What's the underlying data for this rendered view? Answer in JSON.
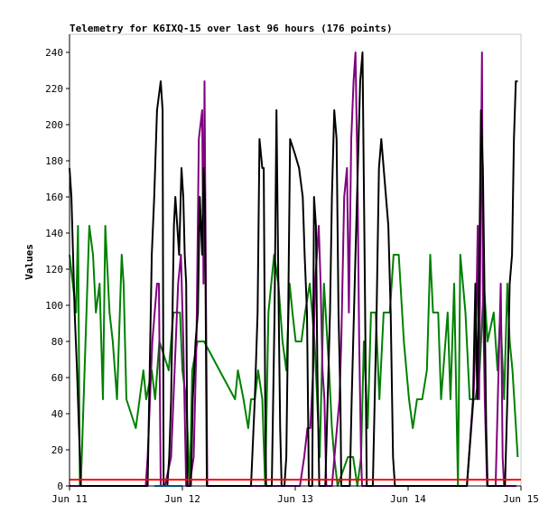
{
  "chart_data": {
    "type": "line",
    "title": "Telemetry for K6IXQ-15 over last 96 hours (176 points)",
    "xlabel": "",
    "ylabel": "Values",
    "xlim": [
      0,
      96
    ],
    "ylim": [
      0,
      250
    ],
    "grid": false,
    "x_ticks": [
      {
        "value": 0,
        "label": "Jun 11"
      },
      {
        "value": 24,
        "label": "Jun 12"
      },
      {
        "value": 48,
        "label": "Jun 13"
      },
      {
        "value": 72,
        "label": "Jun 14"
      },
      {
        "value": 96,
        "label": "Jun 15"
      }
    ],
    "y_ticks": [
      {
        "value": 0,
        "label": "0"
      },
      {
        "value": 20,
        "label": "20"
      },
      {
        "value": 40,
        "label": "40"
      },
      {
        "value": 60,
        "label": "60"
      },
      {
        "value": 80,
        "label": "80"
      },
      {
        "value": 100,
        "label": "100"
      },
      {
        "value": 120,
        "label": "120"
      },
      {
        "value": 140,
        "label": "140"
      },
      {
        "value": 160,
        "label": "160"
      },
      {
        "value": 180,
        "label": "180"
      },
      {
        "value": 200,
        "label": "200"
      },
      {
        "value": 220,
        "label": "220"
      },
      {
        "value": 240,
        "label": "240"
      }
    ],
    "series": [
      {
        "color": "#008000",
        "points": [
          [
            0.0,
            128
          ],
          [
            1.4,
            96
          ],
          [
            1.8,
            144
          ],
          [
            2.2,
            0
          ],
          [
            2.4,
            0
          ],
          [
            4.2,
            144
          ],
          [
            5.0,
            128
          ],
          [
            5.6,
            96
          ],
          [
            6.4,
            112
          ],
          [
            7.1,
            48
          ],
          [
            7.6,
            144
          ],
          [
            8.5,
            96
          ],
          [
            9.2,
            80
          ],
          [
            10.1,
            48
          ],
          [
            11.1,
            128
          ],
          [
            11.5,
            112
          ],
          [
            12.1,
            48
          ],
          [
            14.1,
            32
          ],
          [
            14.9,
            48
          ],
          [
            15.7,
            64
          ],
          [
            16.3,
            48
          ],
          [
            17.5,
            64
          ],
          [
            18.2,
            48
          ],
          [
            19.1,
            80
          ],
          [
            21.1,
            64
          ],
          [
            21.6,
            80
          ],
          [
            22.1,
            96
          ],
          [
            23.5,
            96
          ],
          [
            24.0,
            64
          ],
          [
            24.8,
            48
          ],
          [
            25.6,
            0
          ],
          [
            26.1,
            64
          ],
          [
            27.2,
            80
          ],
          [
            28.2,
            80
          ],
          [
            28.6,
            80
          ],
          [
            31.9,
            64
          ],
          [
            35.2,
            48
          ],
          [
            35.8,
            64
          ],
          [
            37.0,
            48
          ],
          [
            38.0,
            32
          ],
          [
            38.6,
            48
          ],
          [
            39.4,
            48
          ],
          [
            40.1,
            64
          ],
          [
            41.0,
            48
          ],
          [
            41.6,
            0
          ],
          [
            42.3,
            96
          ],
          [
            43.5,
            128
          ],
          [
            44.4,
            112
          ],
          [
            45.3,
            80
          ],
          [
            46.1,
            64
          ],
          [
            46.8,
            112
          ],
          [
            47.4,
            96
          ],
          [
            48.1,
            80
          ],
          [
            49.3,
            80
          ],
          [
            50.1,
            96
          ],
          [
            51.1,
            112
          ],
          [
            52.1,
            80
          ],
          [
            53.2,
            16
          ],
          [
            54.1,
            112
          ],
          [
            55.2,
            64
          ],
          [
            55.8,
            32
          ],
          [
            56.3,
            16
          ],
          [
            57.0,
            0
          ],
          [
            59.2,
            16
          ],
          [
            60.3,
            16
          ],
          [
            61.2,
            0
          ],
          [
            62.0,
            16
          ],
          [
            62.6,
            80
          ],
          [
            63.4,
            32
          ],
          [
            64.1,
            96
          ],
          [
            65.1,
            96
          ],
          [
            65.9,
            48
          ],
          [
            66.8,
            96
          ],
          [
            68.1,
            96
          ],
          [
            68.9,
            128
          ],
          [
            70.0,
            128
          ],
          [
            71.1,
            80
          ],
          [
            72.2,
            48
          ],
          [
            73.0,
            32
          ],
          [
            73.9,
            48
          ],
          [
            75.0,
            48
          ],
          [
            76.0,
            64
          ],
          [
            76.7,
            128
          ],
          [
            77.3,
            96
          ],
          [
            78.4,
            96
          ],
          [
            79.0,
            48
          ],
          [
            80.4,
            96
          ],
          [
            81.0,
            48
          ],
          [
            81.8,
            112
          ],
          [
            82.6,
            0
          ],
          [
            83.1,
            128
          ],
          [
            84.2,
            96
          ],
          [
            85.1,
            48
          ],
          [
            86.3,
            48
          ],
          [
            87.2,
            64
          ],
          [
            88.1,
            112
          ],
          [
            88.9,
            80
          ],
          [
            90.2,
            96
          ],
          [
            91.0,
            64
          ],
          [
            91.6,
            96
          ],
          [
            92.4,
            48
          ],
          [
            93.1,
            112
          ],
          [
            93.6,
            80
          ],
          [
            94.2,
            64
          ],
          [
            95.3,
            16
          ]
        ]
      },
      {
        "color": "#800080",
        "points": [
          [
            0.0,
            0
          ],
          [
            16.2,
            0
          ],
          [
            16.6,
            16
          ],
          [
            17.1,
            48
          ],
          [
            17.6,
            80
          ],
          [
            18.1,
            96
          ],
          [
            18.6,
            112
          ],
          [
            19.0,
            112
          ],
          [
            19.4,
            0
          ],
          [
            19.8,
            0
          ],
          [
            20.3,
            0
          ],
          [
            21.6,
            16
          ],
          [
            22.1,
            48
          ],
          [
            22.6,
            80
          ],
          [
            23.1,
            112
          ],
          [
            23.7,
            128
          ],
          [
            24.2,
            80
          ],
          [
            24.8,
            0
          ],
          [
            25.5,
            0
          ],
          [
            26.4,
            16
          ],
          [
            27.0,
            80
          ],
          [
            27.5,
            192
          ],
          [
            28.2,
            208
          ],
          [
            28.5,
            112
          ],
          [
            28.7,
            224
          ],
          [
            29.0,
            112
          ],
          [
            29.3,
            0
          ],
          [
            30.5,
            0
          ],
          [
            47.3,
            0
          ],
          [
            49.0,
            0
          ],
          [
            49.9,
            16
          ],
          [
            50.6,
            32
          ],
          [
            51.2,
            32
          ],
          [
            51.8,
            64
          ],
          [
            52.2,
            112
          ],
          [
            52.6,
            128
          ],
          [
            53.0,
            144
          ],
          [
            53.4,
            112
          ],
          [
            53.8,
            64
          ],
          [
            54.2,
            48
          ],
          [
            54.6,
            0
          ],
          [
            55.8,
            0
          ],
          [
            57.4,
            48
          ],
          [
            57.8,
            80
          ],
          [
            58.4,
            160
          ],
          [
            59.0,
            176
          ],
          [
            59.4,
            96
          ],
          [
            59.9,
            192
          ],
          [
            60.4,
            224
          ],
          [
            60.8,
            240
          ],
          [
            61.2,
            176
          ],
          [
            61.6,
            80
          ],
          [
            62.0,
            16
          ],
          [
            62.2,
            0
          ],
          [
            63.0,
            0
          ],
          [
            84.5,
            0
          ],
          [
            85.9,
            48
          ],
          [
            86.3,
            80
          ],
          [
            86.5,
            96
          ],
          [
            86.8,
            144
          ],
          [
            87.1,
            48
          ],
          [
            87.7,
            240
          ],
          [
            87.9,
            112
          ],
          [
            88.3,
            48
          ],
          [
            88.8,
            0
          ],
          [
            90.6,
            0
          ],
          [
            91.7,
            112
          ],
          [
            92.1,
            16
          ],
          [
            92.4,
            0
          ],
          [
            95.0,
            0
          ]
        ]
      },
      {
        "color": "#000000",
        "points": [
          [
            0.0,
            176
          ],
          [
            0.4,
            160
          ],
          [
            1.1,
            96
          ],
          [
            1.6,
            64
          ],
          [
            2.2,
            16
          ],
          [
            2.4,
            0
          ],
          [
            3.0,
            0
          ],
          [
            16.6,
            0
          ],
          [
            17.5,
            128
          ],
          [
            18.0,
            160
          ],
          [
            18.6,
            208
          ],
          [
            19.4,
            224
          ],
          [
            19.8,
            208
          ],
          [
            20.0,
            0
          ],
          [
            20.8,
            0
          ],
          [
            21.2,
            16
          ],
          [
            21.6,
            48
          ],
          [
            22.2,
            144
          ],
          [
            22.5,
            160
          ],
          [
            23.3,
            128
          ],
          [
            23.8,
            176
          ],
          [
            24.2,
            160
          ],
          [
            24.5,
            128
          ],
          [
            24.8,
            112
          ],
          [
            25.1,
            0
          ],
          [
            25.8,
            0
          ],
          [
            26.2,
            48
          ],
          [
            26.8,
            80
          ],
          [
            27.3,
            96
          ],
          [
            27.7,
            160
          ],
          [
            28.2,
            128
          ],
          [
            28.5,
            176
          ],
          [
            28.8,
            160
          ],
          [
            29.2,
            0
          ],
          [
            38.6,
            0
          ],
          [
            39.4,
            48
          ],
          [
            40.0,
            96
          ],
          [
            40.4,
            192
          ],
          [
            41.0,
            176
          ],
          [
            41.3,
            176
          ],
          [
            41.6,
            48
          ],
          [
            41.8,
            0
          ],
          [
            43.0,
            0
          ],
          [
            43.6,
            96
          ],
          [
            44.0,
            208
          ],
          [
            44.4,
            112
          ],
          [
            44.8,
            32
          ],
          [
            45.1,
            0
          ],
          [
            45.7,
            0
          ],
          [
            46.1,
            16
          ],
          [
            46.5,
            96
          ],
          [
            46.9,
            192
          ],
          [
            47.9,
            184
          ],
          [
            48.8,
            176
          ],
          [
            49.6,
            160
          ],
          [
            50.0,
            128
          ],
          [
            50.5,
            96
          ],
          [
            50.9,
            0
          ],
          [
            51.6,
            0
          ],
          [
            52.0,
            160
          ],
          [
            52.4,
            144
          ],
          [
            52.7,
            64
          ],
          [
            53.1,
            0
          ],
          [
            54.4,
            0
          ],
          [
            54.9,
            48
          ],
          [
            55.4,
            96
          ],
          [
            55.8,
            160
          ],
          [
            56.3,
            208
          ],
          [
            56.8,
            192
          ],
          [
            57.2,
            96
          ],
          [
            57.6,
            48
          ],
          [
            57.8,
            0
          ],
          [
            59.6,
            0
          ],
          [
            60.0,
            48
          ],
          [
            60.8,
            128
          ],
          [
            61.3,
            176
          ],
          [
            61.8,
            224
          ],
          [
            62.3,
            240
          ],
          [
            62.8,
            112
          ],
          [
            63.2,
            0
          ],
          [
            64.5,
            0
          ],
          [
            65.3,
            96
          ],
          [
            65.8,
            176
          ],
          [
            66.3,
            192
          ],
          [
            66.8,
            176
          ],
          [
            67.3,
            160
          ],
          [
            67.8,
            144
          ],
          [
            68.3,
            96
          ],
          [
            68.8,
            16
          ],
          [
            69.2,
            0
          ],
          [
            84.5,
            0
          ],
          [
            85.8,
            48
          ],
          [
            86.3,
            112
          ],
          [
            86.7,
            48
          ],
          [
            87.1,
            112
          ],
          [
            87.5,
            208
          ],
          [
            87.9,
            176
          ],
          [
            88.3,
            96
          ],
          [
            88.6,
            32
          ],
          [
            88.9,
            0
          ],
          [
            92.6,
            0
          ],
          [
            93.1,
            48
          ],
          [
            93.6,
            112
          ],
          [
            94.1,
            128
          ],
          [
            94.5,
            192
          ],
          [
            94.9,
            224
          ],
          [
            95.3,
            224
          ]
        ]
      },
      {
        "color": "#ff0000",
        "points": [
          [
            0.0,
            3.5
          ],
          [
            96.0,
            3.5
          ]
        ]
      },
      {
        "color": "#00a0ff",
        "points": [
          [
            18.0,
            0
          ],
          [
            24.0,
            0
          ]
        ]
      }
    ]
  }
}
